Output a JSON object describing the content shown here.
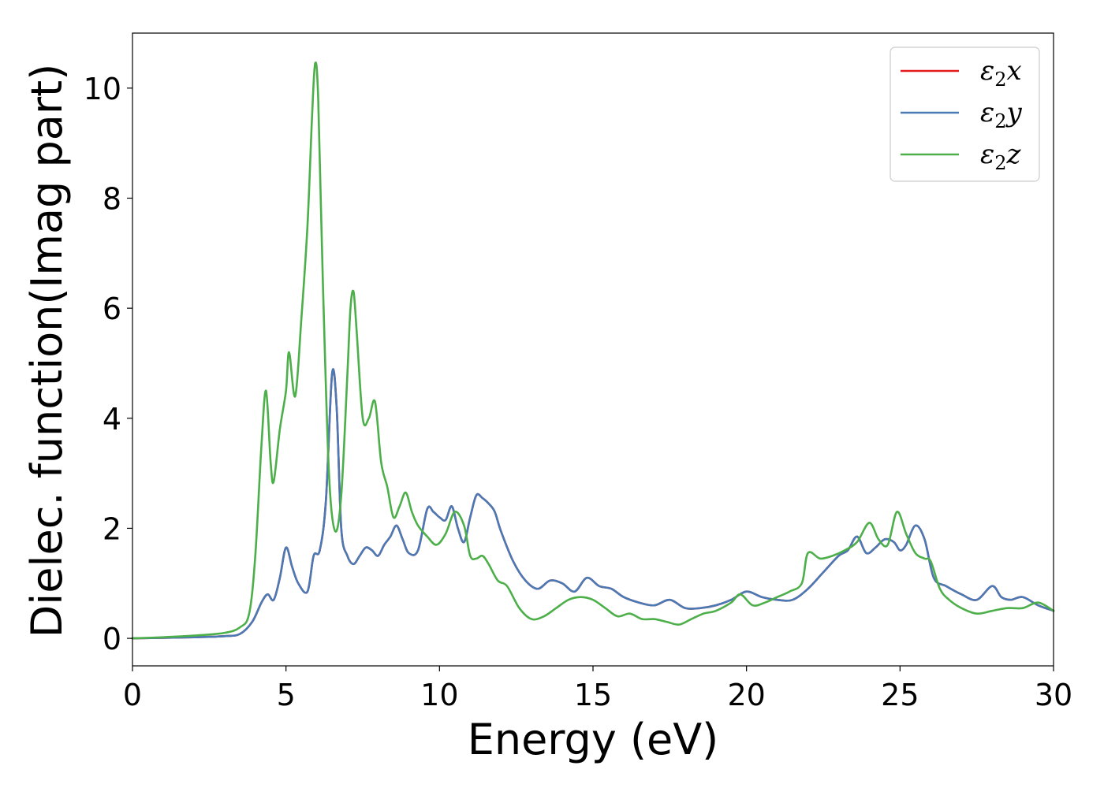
{
  "chart_data": {
    "type": "line",
    "title": "",
    "xlabel": "Energy (eV)",
    "ylabel": "Dielec. function(Imag part)",
    "xlim": [
      0,
      30
    ],
    "ylim": [
      -0.5,
      11
    ],
    "xticks": [
      0,
      5,
      10,
      15,
      20,
      25,
      30
    ],
    "yticks": [
      0,
      2,
      4,
      6,
      8,
      10
    ],
    "grid": false,
    "legend_position": "top-right",
    "series": [
      {
        "name": "ε2x",
        "color": "#e41a1c",
        "x": [
          0,
          1,
          2,
          3,
          3.5,
          3.9,
          4.2,
          4.4,
          4.6,
          4.8,
          5.0,
          5.2,
          5.4,
          5.7,
          5.9,
          6.1,
          6.3,
          6.5,
          6.65,
          6.8,
          7.0,
          7.2,
          7.4,
          7.6,
          7.8,
          8.0,
          8.2,
          8.4,
          8.6,
          8.8,
          9.0,
          9.3,
          9.6,
          9.8,
          10.0,
          10.2,
          10.4,
          10.6,
          10.8,
          11.0,
          11.2,
          11.4,
          11.6,
          11.8,
          12.0,
          12.4,
          12.8,
          13.2,
          13.6,
          14.0,
          14.4,
          14.8,
          15.2,
          15.6,
          16.0,
          16.5,
          17.0,
          17.5,
          18.0,
          18.5,
          19.0,
          19.5,
          20.0,
          20.5,
          21.0,
          21.5,
          22.0,
          22.5,
          23.0,
          23.3,
          23.6,
          23.9,
          24.2,
          24.5,
          24.8,
          25.0,
          25.2,
          25.5,
          25.8,
          26.1,
          26.5,
          27.0,
          27.5,
          28.0,
          28.3,
          28.6,
          29.0,
          29.5,
          30.0
        ],
        "y": [
          0,
          0.01,
          0.02,
          0.04,
          0.08,
          0.3,
          0.65,
          0.8,
          0.7,
          1.1,
          1.65,
          1.3,
          1.0,
          0.85,
          1.5,
          1.6,
          2.5,
          4.8,
          4.2,
          2.0,
          1.5,
          1.35,
          1.5,
          1.65,
          1.6,
          1.5,
          1.7,
          1.85,
          2.05,
          1.8,
          1.55,
          1.6,
          2.35,
          2.3,
          2.2,
          2.15,
          2.4,
          2.0,
          1.75,
          2.2,
          2.6,
          2.55,
          2.45,
          2.3,
          1.95,
          1.4,
          1.05,
          0.9,
          1.05,
          1.0,
          0.85,
          1.1,
          0.95,
          0.9,
          0.75,
          0.65,
          0.6,
          0.7,
          0.55,
          0.55,
          0.6,
          0.7,
          0.85,
          0.75,
          0.7,
          0.7,
          0.9,
          1.2,
          1.5,
          1.6,
          1.85,
          1.55,
          1.65,
          1.8,
          1.75,
          1.6,
          1.7,
          2.05,
          1.8,
          1.1,
          0.95,
          0.8,
          0.7,
          0.95,
          0.75,
          0.7,
          0.75,
          0.6,
          0.5
        ]
      },
      {
        "name": "ε2y",
        "color": "#4a7ab5",
        "x": [
          0,
          1,
          2,
          3,
          3.5,
          3.9,
          4.2,
          4.4,
          4.6,
          4.8,
          5.0,
          5.2,
          5.4,
          5.7,
          5.9,
          6.1,
          6.3,
          6.5,
          6.65,
          6.8,
          7.0,
          7.2,
          7.4,
          7.6,
          7.8,
          8.0,
          8.2,
          8.4,
          8.6,
          8.8,
          9.0,
          9.3,
          9.6,
          9.8,
          10.0,
          10.2,
          10.4,
          10.6,
          10.8,
          11.0,
          11.2,
          11.4,
          11.6,
          11.8,
          12.0,
          12.4,
          12.8,
          13.2,
          13.6,
          14.0,
          14.4,
          14.8,
          15.2,
          15.6,
          16.0,
          16.5,
          17.0,
          17.5,
          18.0,
          18.5,
          19.0,
          19.5,
          20.0,
          20.5,
          21.0,
          21.5,
          22.0,
          22.5,
          23.0,
          23.3,
          23.6,
          23.9,
          24.2,
          24.5,
          24.8,
          25.0,
          25.2,
          25.5,
          25.8,
          26.1,
          26.5,
          27.0,
          27.5,
          28.0,
          28.3,
          28.6,
          29.0,
          29.5,
          30.0
        ],
        "y": [
          0,
          0.01,
          0.02,
          0.04,
          0.08,
          0.3,
          0.65,
          0.8,
          0.7,
          1.1,
          1.65,
          1.3,
          1.0,
          0.85,
          1.5,
          1.6,
          2.5,
          4.8,
          4.2,
          2.0,
          1.5,
          1.35,
          1.5,
          1.65,
          1.6,
          1.5,
          1.7,
          1.85,
          2.05,
          1.8,
          1.55,
          1.6,
          2.35,
          2.3,
          2.2,
          2.15,
          2.4,
          2.0,
          1.75,
          2.2,
          2.6,
          2.55,
          2.45,
          2.3,
          1.95,
          1.4,
          1.05,
          0.9,
          1.05,
          1.0,
          0.85,
          1.1,
          0.95,
          0.9,
          0.75,
          0.65,
          0.6,
          0.7,
          0.55,
          0.55,
          0.6,
          0.7,
          0.85,
          0.75,
          0.7,
          0.7,
          0.9,
          1.2,
          1.5,
          1.6,
          1.85,
          1.55,
          1.65,
          1.8,
          1.75,
          1.6,
          1.7,
          2.05,
          1.8,
          1.1,
          0.95,
          0.8,
          0.7,
          0.95,
          0.75,
          0.7,
          0.75,
          0.6,
          0.5
        ]
      },
      {
        "name": "ε2z",
        "color": "#4daf4a",
        "x": [
          0,
          1,
          2,
          3,
          3.5,
          3.8,
          4.0,
          4.2,
          4.35,
          4.5,
          4.6,
          4.8,
          5.0,
          5.1,
          5.3,
          5.5,
          5.7,
          5.85,
          5.95,
          6.05,
          6.2,
          6.4,
          6.6,
          6.8,
          7.0,
          7.1,
          7.2,
          7.3,
          7.5,
          7.7,
          7.9,
          8.1,
          8.3,
          8.5,
          8.7,
          8.9,
          9.1,
          9.3,
          9.6,
          9.9,
          10.2,
          10.5,
          10.8,
          11.0,
          11.2,
          11.4,
          11.6,
          11.9,
          12.2,
          12.6,
          13.0,
          13.4,
          13.8,
          14.2,
          14.6,
          15.0,
          15.4,
          15.8,
          16.2,
          16.6,
          17.0,
          17.4,
          17.8,
          18.2,
          18.6,
          19.0,
          19.5,
          19.8,
          20.2,
          20.6,
          21.0,
          21.4,
          21.8,
          22.0,
          22.4,
          22.8,
          23.2,
          23.6,
          24.0,
          24.3,
          24.6,
          24.9,
          25.2,
          25.5,
          25.8,
          26.0,
          26.3,
          26.6,
          27.0,
          27.5,
          28.0,
          28.5,
          29.0,
          29.5,
          30.0
        ],
        "y": [
          0,
          0.02,
          0.05,
          0.1,
          0.2,
          0.45,
          1.5,
          3.5,
          4.5,
          3.2,
          2.85,
          3.8,
          4.5,
          5.2,
          4.4,
          5.8,
          7.5,
          9.5,
          10.45,
          9.8,
          6.5,
          3.0,
          1.95,
          2.6,
          4.8,
          6.0,
          6.3,
          5.6,
          4.0,
          4.0,
          4.3,
          3.2,
          2.75,
          2.2,
          2.4,
          2.65,
          2.3,
          2.05,
          1.85,
          1.7,
          1.9,
          2.3,
          2.05,
          1.5,
          1.45,
          1.5,
          1.35,
          1.05,
          0.95,
          0.55,
          0.35,
          0.4,
          0.55,
          0.7,
          0.75,
          0.7,
          0.55,
          0.4,
          0.45,
          0.35,
          0.35,
          0.3,
          0.25,
          0.35,
          0.45,
          0.5,
          0.65,
          0.8,
          0.6,
          0.65,
          0.75,
          0.85,
          1.0,
          1.55,
          1.45,
          1.5,
          1.6,
          1.75,
          2.1,
          1.8,
          1.7,
          2.3,
          1.9,
          1.55,
          1.45,
          1.4,
          0.9,
          0.7,
          0.55,
          0.45,
          0.5,
          0.55,
          0.55,
          0.65,
          0.5
        ]
      }
    ]
  }
}
